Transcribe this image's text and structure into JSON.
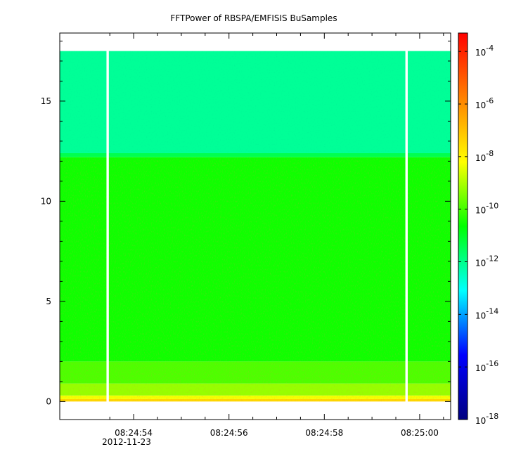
{
  "chart_data": {
    "type": "heatmap",
    "title": "FFTPower of RBSPA/EMFISIS  BuSamples",
    "xlabel": "",
    "ylabel": "",
    "x_date_label": "2012-11-23",
    "x_range_seconds": [
      52.45,
      60.65
    ],
    "x_ticks": [
      {
        "value": 54,
        "label": "08:24:54"
      },
      {
        "value": 56,
        "label": "08:24:56"
      },
      {
        "value": 58,
        "label": "08:24:58"
      },
      {
        "value": 60,
        "label": "08:25:00"
      }
    ],
    "x_minor_ticks": [
      53.5,
      54.5,
      55,
      55.5,
      56.5,
      57,
      57.5,
      58.5,
      59,
      59.5,
      60.5
    ],
    "ylim": [
      -0.9,
      18.4
    ],
    "y_ticks": [
      0,
      5,
      10,
      15
    ],
    "y_minor_ticks": [
      1,
      2,
      3,
      4,
      6,
      7,
      8,
      9,
      11,
      12,
      13,
      14,
      16,
      17,
      18
    ],
    "data_extent": {
      "x": [
        52.45,
        60.65
      ],
      "y": [
        0,
        17.5
      ]
    },
    "bands": [
      {
        "y_from": 0,
        "y_to": 0.12,
        "log10_power": -7.4
      },
      {
        "y_from": 0.12,
        "y_to": 0.3,
        "log10_power": -8.3
      },
      {
        "y_from": 0.3,
        "y_to": 0.9,
        "log10_power": -9.2
      },
      {
        "y_from": 0.9,
        "y_to": 2.0,
        "log10_power": -9.9
      },
      {
        "y_from": 2.0,
        "y_to": 12.2,
        "log10_power": -10.5
      },
      {
        "y_from": 12.2,
        "y_to": 12.4,
        "log10_power": -11.4
      },
      {
        "y_from": 12.4,
        "y_to": 17.5,
        "log10_power": -12.1
      }
    ],
    "gaps": [
      {
        "x_from": 53.43,
        "x_to": 53.48
      },
      {
        "x_from": 59.7,
        "x_to": 59.75
      }
    ],
    "colorbar": {
      "scale": "log",
      "range": [
        -18,
        -3.3
      ],
      "colors": [
        "#000080",
        "#0000ff",
        "#00ffff",
        "#00ff00",
        "#ffff00",
        "#ff8000",
        "#ff0000"
      ],
      "ticks": [
        {
          "exp": -4,
          "base": "10",
          "sup": "-4"
        },
        {
          "exp": -6,
          "base": "10",
          "sup": "-6"
        },
        {
          "exp": -8,
          "base": "10",
          "sup": "-8"
        },
        {
          "exp": -10,
          "base": "10",
          "sup": "-10"
        },
        {
          "exp": -12,
          "base": "10",
          "sup": "-12"
        },
        {
          "exp": -14,
          "base": "10",
          "sup": "-14"
        },
        {
          "exp": -16,
          "base": "10",
          "sup": "-16"
        },
        {
          "exp": -18,
          "base": "10",
          "sup": "-18"
        }
      ]
    },
    "grid": false,
    "legend": "none"
  }
}
